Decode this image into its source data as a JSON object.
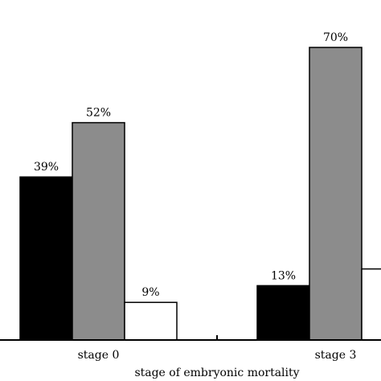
{
  "chart_data": {
    "type": "bar",
    "xlabel": "stage of embryonic mortality",
    "ylabel": "",
    "ylim": [
      0,
      100
    ],
    "grid": false,
    "groups": [
      {
        "label": "stage 0",
        "bars": [
          {
            "value": 39,
            "label": "39%",
            "color": "#000000"
          },
          {
            "value": 52,
            "label": "52%",
            "color": "#8c8c8c"
          },
          {
            "value": 9,
            "label": "9%",
            "color": "#ffffff"
          }
        ]
      },
      {
        "label": "stage 3",
        "bars": [
          {
            "value": 13,
            "label": "13%",
            "color": "#000000"
          },
          {
            "value": 70,
            "label": "70%",
            "color": "#8c8c8c"
          },
          {
            "value": 17,
            "label": "",
            "color": "#ffffff"
          }
        ]
      }
    ]
  }
}
